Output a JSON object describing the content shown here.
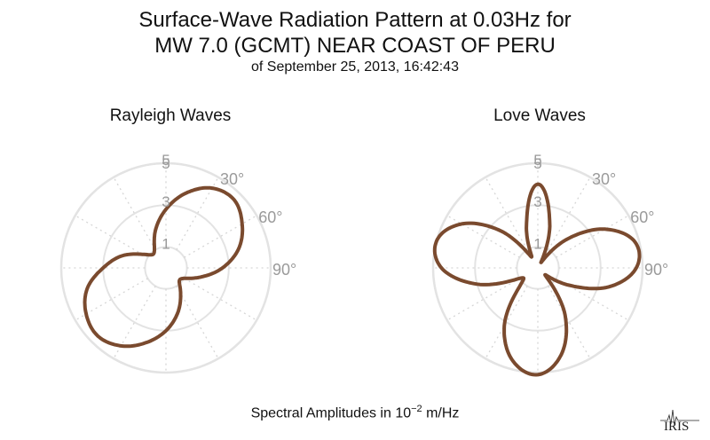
{
  "title_line1": "Surface-Wave Radiation Pattern at 0.03Hz for",
  "title_line2": "MW 7.0 (GCMT) NEAR COAST OF PERU",
  "subtitle": "of September 25, 2013, 16:42:43",
  "footer": {
    "prefix": "Spectral Amplitudes in ",
    "base": "10",
    "exponent": "−2",
    "unit": " m/Hz"
  },
  "logo_text": "IRIS",
  "colors": {
    "curve": "#7a4a2e",
    "grid": "#e3e3e3",
    "tick_label": "#9a9a9a"
  },
  "chart_data": [
    {
      "type": "polar",
      "title": "Rayleigh Waves",
      "radial_ticks": [
        1,
        3,
        5
      ],
      "radial_max": 5,
      "angle_labels": [
        "30°",
        "60°",
        "90°"
      ],
      "grid": true,
      "theta_deg": [
        0,
        15,
        30,
        45,
        60,
        75,
        90,
        105,
        120,
        135,
        150,
        165,
        180,
        195,
        210,
        225,
        240,
        255,
        270,
        285,
        300,
        315,
        330,
        345
      ],
      "r": [
        2.8,
        3.7,
        4.4,
        4.6,
        4.2,
        3.6,
        2.7,
        1.7,
        1.0,
        0.9,
        1.4,
        2.2,
        3.0,
        3.7,
        4.3,
        4.6,
        4.4,
        3.9,
        3.0,
        2.2,
        1.3,
        0.9,
        1.1,
        1.9
      ]
    },
    {
      "type": "polar",
      "title": "Love Waves",
      "radial_ticks": [
        1,
        3,
        5
      ],
      "radial_max": 5,
      "angle_labels": [
        "30°",
        "60°",
        "90°"
      ],
      "grid": true,
      "theta_deg": [
        0,
        15,
        30,
        45,
        60,
        75,
        90,
        105,
        120,
        135,
        150,
        165,
        180,
        195,
        210,
        225,
        240,
        255,
        270,
        285,
        300,
        315,
        330,
        345
      ],
      "r": [
        4.0,
        2.2,
        0.3,
        1.9,
        3.7,
        4.8,
        4.7,
        3.5,
        1.6,
        0.5,
        2.6,
        4.3,
        5.1,
        4.6,
        3.2,
        1.2,
        1.0,
        3.0,
        4.6,
        5.0,
        4.2,
        2.5,
        0.6,
        2.1
      ]
    }
  ]
}
